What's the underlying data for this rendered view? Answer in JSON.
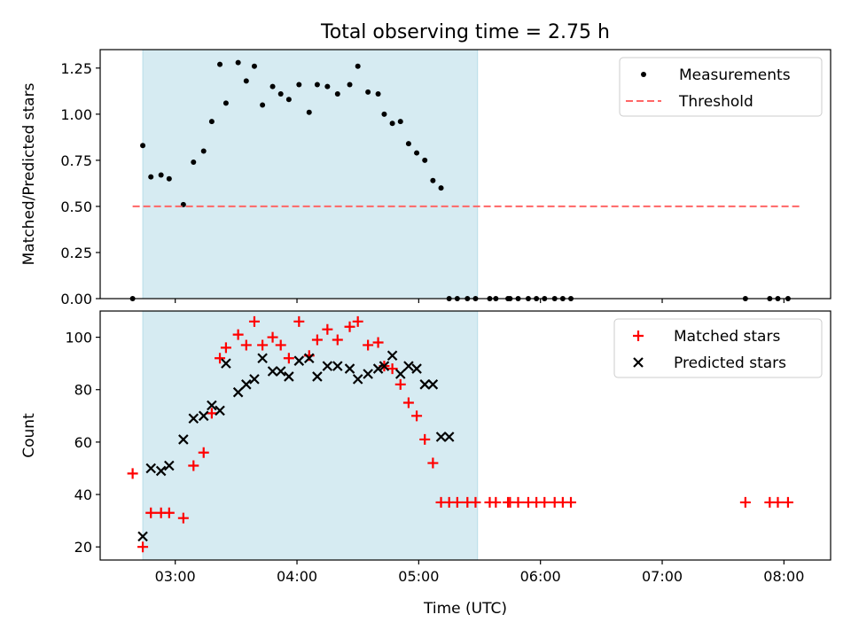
{
  "figure": {
    "title": "Total observing time = 2.75 h",
    "xlabel": "Time (UTC)"
  },
  "chart_data": [
    {
      "type": "scatter",
      "title": "Total observing time = 2.75 h",
      "xlabel": "",
      "ylabel": "Matched/Predicted stars",
      "xlim": [
        "02:23",
        "08:23"
      ],
      "ylim": [
        0,
        1.35
      ],
      "x_ticks": [
        "03:00",
        "04:00",
        "05:00",
        "06:00",
        "07:00",
        "08:00"
      ],
      "y_ticks": [
        0.0,
        0.25,
        0.5,
        0.75,
        1.0,
        1.25
      ],
      "y_tick_labels": [
        "0.00",
        "0.25",
        "0.50",
        "0.75",
        "1.00",
        "1.25"
      ],
      "grid": false,
      "legend_position": "top-right",
      "shaded_span": [
        "02:44",
        "05:29"
      ],
      "shade_color": "#add8e6",
      "series": [
        {
          "name": "Measurements",
          "marker": "dot",
          "color": "#000000",
          "x": [
            "02:39",
            "02:44",
            "02:48",
            "02:53",
            "02:57",
            "03:04",
            "03:09",
            "03:14",
            "03:18",
            "03:22",
            "03:25",
            "03:31",
            "03:35",
            "03:39",
            "03:43",
            "03:48",
            "03:52",
            "03:56",
            "04:01",
            "04:06",
            "04:10",
            "04:15",
            "04:20",
            "04:26",
            "04:30",
            "04:35",
            "04:40",
            "04:43",
            "04:47",
            "04:51",
            "04:55",
            "04:59",
            "05:03",
            "05:07",
            "05:11",
            "05:15",
            "05:19",
            "05:24",
            "05:28",
            "05:35",
            "05:38",
            "05:44",
            "05:45",
            "05:49",
            "05:54",
            "05:58",
            "06:02",
            "06:07",
            "06:11",
            "06:15",
            "07:41",
            "07:53",
            "07:57",
            "08:02"
          ],
          "y": [
            0.0,
            0.83,
            0.66,
            0.67,
            0.65,
            0.51,
            0.74,
            0.8,
            0.96,
            1.27,
            1.06,
            1.28,
            1.18,
            1.26,
            1.05,
            1.15,
            1.11,
            1.08,
            1.16,
            1.01,
            1.16,
            1.15,
            1.11,
            1.16,
            1.26,
            1.12,
            1.11,
            1.0,
            0.95,
            0.96,
            0.84,
            0.79,
            0.75,
            0.64,
            0.6,
            0.0,
            0.0,
            0.0,
            0.0,
            0.0,
            0.0,
            0.0,
            0.0,
            0.0,
            0.0,
            0.0,
            0.0,
            0.0,
            0.0,
            0.0,
            0.0,
            0.0,
            0.0,
            0.0
          ]
        },
        {
          "name": "Threshold",
          "line": "dashed",
          "color": "#ff6666",
          "x": [
            "02:39",
            "08:08"
          ],
          "y": [
            0.5,
            0.5
          ]
        }
      ]
    },
    {
      "type": "scatter",
      "title": "",
      "xlabel": "Time (UTC)",
      "ylabel": "Count",
      "xlim": [
        "02:23",
        "08:23"
      ],
      "ylim": [
        15,
        110
      ],
      "x_ticks": [
        "03:00",
        "04:00",
        "05:00",
        "06:00",
        "07:00",
        "08:00"
      ],
      "y_ticks": [
        20,
        40,
        60,
        80,
        100
      ],
      "grid": false,
      "legend_position": "top-right",
      "shaded_span": [
        "02:44",
        "05:29"
      ],
      "shade_color": "#add8e6",
      "series": [
        {
          "name": "Matched stars",
          "marker": "plus",
          "color": "#ff0000",
          "x": [
            "02:39",
            "02:44",
            "02:48",
            "02:53",
            "02:57",
            "03:04",
            "03:09",
            "03:14",
            "03:18",
            "03:22",
            "03:25",
            "03:31",
            "03:35",
            "03:39",
            "03:43",
            "03:48",
            "03:52",
            "03:56",
            "04:01",
            "04:06",
            "04:10",
            "04:15",
            "04:20",
            "04:26",
            "04:30",
            "04:35",
            "04:40",
            "04:43",
            "04:47",
            "04:51",
            "04:55",
            "04:59",
            "05:03",
            "05:07",
            "05:11",
            "05:15",
            "05:19",
            "05:24",
            "05:28",
            "05:35",
            "05:38",
            "05:44",
            "05:45",
            "05:49",
            "05:54",
            "05:58",
            "06:02",
            "06:07",
            "06:11",
            "06:15",
            "07:41",
            "07:53",
            "07:57",
            "08:02"
          ],
          "y": [
            48,
            20,
            33,
            33,
            33,
            31,
            51,
            56,
            71,
            92,
            96,
            101,
            97,
            106,
            97,
            100,
            97,
            92,
            106,
            93,
            99,
            103,
            99,
            104,
            106,
            97,
            98,
            89,
            88,
            82,
            75,
            70,
            61,
            52,
            37,
            37,
            37,
            37,
            37,
            37,
            37,
            37,
            37,
            37,
            37,
            37,
            37,
            37,
            37,
            37,
            37,
            37,
            37,
            37
          ]
        },
        {
          "name": "Predicted stars",
          "marker": "x",
          "color": "#000000",
          "x": [
            "02:44",
            "02:48",
            "02:53",
            "02:57",
            "03:04",
            "03:09",
            "03:14",
            "03:18",
            "03:22",
            "03:25",
            "03:31",
            "03:35",
            "03:39",
            "03:43",
            "03:48",
            "03:52",
            "03:56",
            "04:01",
            "04:06",
            "04:10",
            "04:15",
            "04:20",
            "04:26",
            "04:30",
            "04:35",
            "04:40",
            "04:43",
            "04:47",
            "04:51",
            "04:55",
            "04:59",
            "05:03",
            "05:07",
            "05:11",
            "05:15"
          ],
          "y": [
            24,
            50,
            49,
            51,
            61,
            69,
            70,
            74,
            72,
            90,
            79,
            82,
            84,
            92,
            87,
            87,
            85,
            91,
            92,
            85,
            89,
            89,
            88,
            84,
            86,
            88,
            89,
            93,
            86,
            89,
            88,
            82,
            82,
            62,
            62
          ]
        }
      ]
    }
  ]
}
